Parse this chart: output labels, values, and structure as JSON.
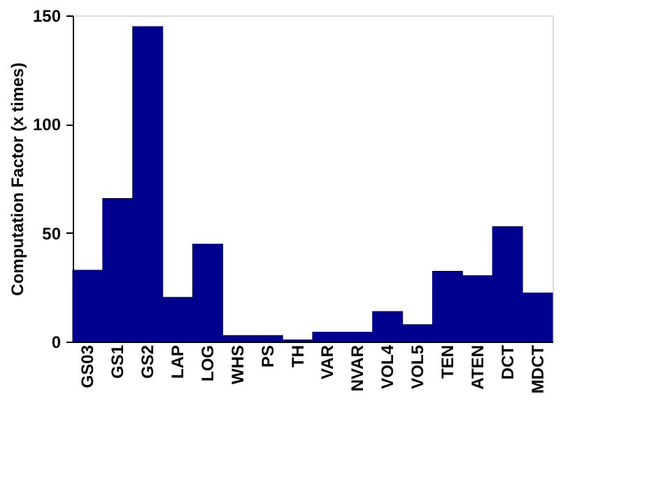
{
  "chart_data": {
    "type": "bar",
    "ylabel": "Computation Factor (x times)",
    "categories": [
      "GS03",
      "GS1",
      "GS2",
      "LAP",
      "LOG",
      "WHS",
      "PS",
      "TH",
      "VAR",
      "NVAR",
      "VOL4",
      "VOL5",
      "TEN",
      "ATEN",
      "DCT",
      "MDCT"
    ],
    "values": [
      33,
      66,
      145,
      20.5,
      45,
      3,
      3,
      1,
      4.5,
      4.5,
      14,
      8,
      32.5,
      30.5,
      53,
      22.5
    ],
    "color": "#00008f",
    "ylim": [
      0,
      150
    ],
    "yticks": [
      0,
      50,
      100,
      150
    ],
    "grid": false
  }
}
